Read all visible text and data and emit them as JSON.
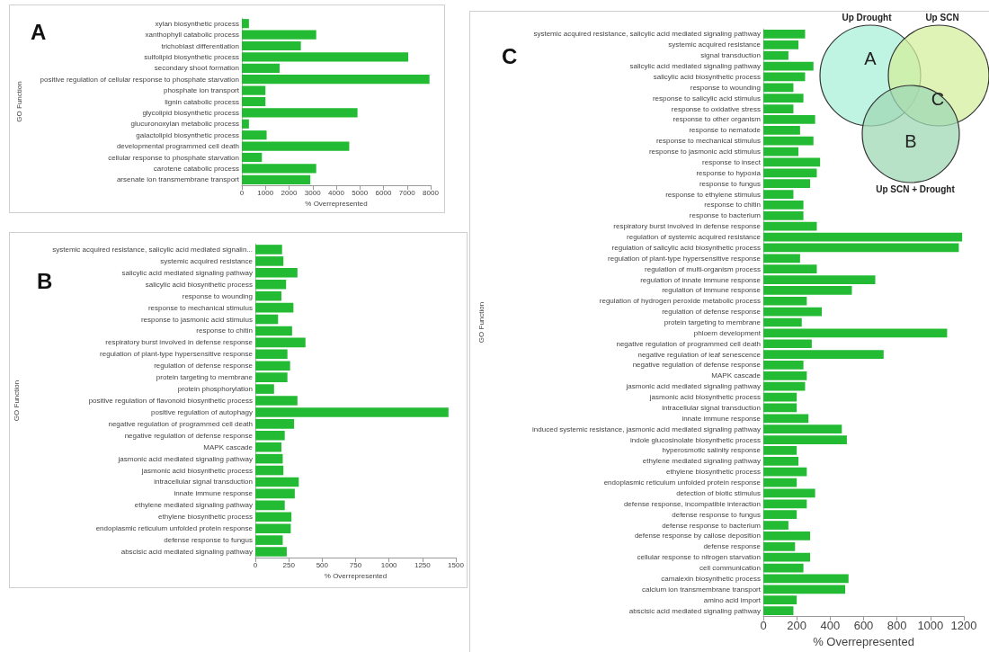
{
  "chart_data": [
    {
      "type": "bar",
      "orientation": "horizontal",
      "title": "A",
      "ylabel": "GO Function",
      "xlabel": "% Overrepresented",
      "color": "#22bb33",
      "categories": [
        "xylan biosynthetic process",
        "xanthophyll catabolic process",
        "trichoblast differentiation",
        "sulfolipid biosynthetic process",
        "secondary shoot formation",
        "positive regulation of cellular response to phosphate starvation",
        "phosphate ion transport",
        "lignin catabolic process",
        "glycolipid biosynthetic process",
        "glucuronoxylan metabolic process",
        "galactolipid biosynthetic process",
        "developmental programmed cell death",
        "cellular response to phosphate starvation",
        "carotene catabolic process",
        "arsenate ion transmembrane transport"
      ],
      "values": [
        300,
        3150,
        2500,
        7050,
        1600,
        7950,
        1000,
        1000,
        4900,
        300,
        1050,
        4550,
        850,
        3150,
        2900
      ],
      "xlim": [
        0,
        8000
      ],
      "xticks": [
        0,
        1000,
        2000,
        3000,
        4000,
        5000,
        6000,
        7000,
        8000
      ]
    },
    {
      "type": "bar",
      "orientation": "horizontal",
      "title": "B",
      "ylabel": "GO Function",
      "xlabel": "% Overrepresented",
      "color": "#22bb33",
      "categories": [
        "systemic acquired resistance, salicylic acid mediated signalin...",
        "systemic acquired resistance",
        "salicylic acid mediated signaling pathway",
        "salicylic acid biosynthetic process",
        "response to wounding",
        "response to mechanical stimulus",
        "response to jasmonic acid stimulus",
        "response to chitin",
        "respiratory burst involved in defense response",
        "regulation of plant-type hypersensitive response",
        "regulation of defense response",
        "protein targeting to membrane",
        "protein phosphorylation",
        "positive regulation of flavonoid biosynthetic process",
        "positive regulation of autophagy",
        "negative regulation of programmed cell death",
        "negative regulation of defense response",
        "MAPK cascade",
        "jasmonic acid mediated signaling pathway",
        "jasmonic acid biosynthetic process",
        "intracellular signal transduction",
        "innate immune response",
        "ethylene mediated signaling pathway",
        "ethylene biosynthetic process",
        "endoplasmic reticulum unfolded protein response",
        "defense response to fungus",
        "abscisic acid mediated signaling pathway"
      ],
      "values": [
        200,
        210,
        315,
        230,
        195,
        285,
        170,
        275,
        375,
        240,
        260,
        240,
        140,
        315,
        1445,
        290,
        220,
        195,
        205,
        210,
        325,
        295,
        220,
        270,
        265,
        205,
        235
      ],
      "xlim": [
        0,
        1500
      ],
      "xticks": [
        0,
        250,
        500,
        750,
        1000,
        1250,
        1500
      ]
    },
    {
      "type": "bar",
      "orientation": "horizontal",
      "title": "C",
      "ylabel": "GO Function",
      "xlabel": "% Overrepresented",
      "color": "#22bb33",
      "categories": [
        "systemic acquired resistance, salicylic acid mediated signaling pathway",
        "systemic acquired resistance",
        "signal transduction",
        "salicylic acid mediated signaling pathway",
        "salicylic acid biosynthetic process",
        "response to wounding",
        "response to salicylic acid stimulus",
        "response to oxidative stress",
        "response to other organism",
        "response to nematode",
        "response to mechanical stimulus",
        "response to jasmonic acid stimulus",
        "response to insect",
        "response to hypoxia",
        "response to fungus",
        "response to ethylene stimulus",
        "response to chitin",
        "response to bacterium",
        "respiratory burst involved in defense response",
        "regulation of systemic acquired resistance",
        "regulation of salicylic acid biosynthetic process",
        "regulation of plant-type hypersensitive response",
        "regulation of multi-organism process",
        "regulation of innate immune response",
        "regulation of immune response",
        "regulation of hydrogen peroxide metabolic process",
        "regulation of defense response",
        "protein targeting to membrane",
        "phloem development",
        "negative regulation of programmed cell death",
        "negative regulation of leaf senescence",
        "negative regulation of defense response",
        "MAPK cascade",
        "jasmonic acid mediated signaling pathway",
        "jasmonic acid biosynthetic process",
        "intracellular signal transduction",
        "innate immune response",
        "induced systemic resistance, jasmonic acid mediated signaling pathway",
        "indole glucosinolate biosynthetic process",
        "hyperosmotic salinity response",
        "ethylene mediated signaling pathway",
        "ethylene biosynthetic process",
        "endoplasmic reticulum unfolded protein response",
        "detection of biotic stimulus",
        "defense response, incompatible interaction",
        "defense response to fungus",
        "defense response to bacterium",
        "defense response by callose deposition",
        "defense response",
        "cellular response to nitrogen starvation",
        "cell communication",
        "camalexin biosynthetic process",
        "calcium ion transmembrane transport",
        "amino acid import",
        "abscisic acid mediated signaling pathway"
      ],
      "values": [
        250,
        210,
        150,
        300,
        250,
        180,
        240,
        180,
        310,
        220,
        300,
        210,
        340,
        320,
        280,
        180,
        240,
        240,
        320,
        1190,
        1170,
        220,
        320,
        670,
        530,
        260,
        350,
        230,
        1100,
        290,
        720,
        240,
        260,
        250,
        200,
        200,
        270,
        470,
        500,
        200,
        210,
        260,
        200,
        310,
        260,
        200,
        150,
        280,
        190,
        280,
        240,
        510,
        490,
        200,
        180
      ],
      "xlim": [
        0,
        1200
      ],
      "xticks": [
        0,
        200,
        400,
        600,
        800,
        1000,
        1200
      ]
    },
    {
      "type": "other",
      "annotations": [
        "Up Drought",
        "Up SCN",
        "Up SCN + Drought",
        "A",
        "B",
        "C"
      ]
    }
  ]
}
